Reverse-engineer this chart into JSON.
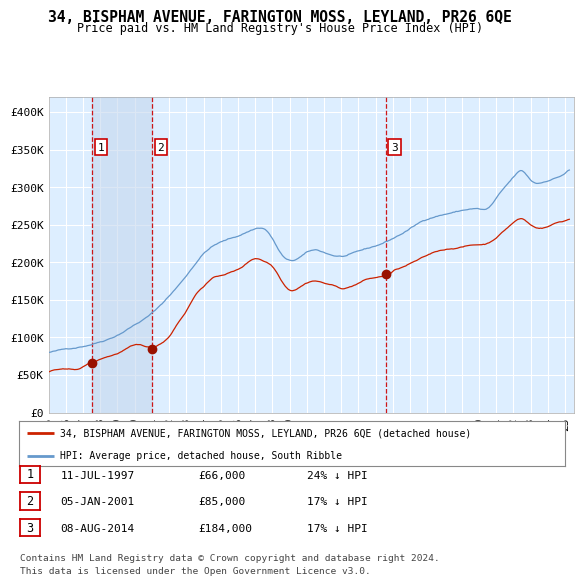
{
  "title": "34, BISPHAM AVENUE, FARINGTON MOSS, LEYLAND, PR26 6QE",
  "subtitle": "Price paid vs. HM Land Registry's House Price Index (HPI)",
  "legend_line1": "34, BISPHAM AVENUE, FARINGTON MOSS, LEYLAND, PR26 6QE (detached house)",
  "legend_line2": "HPI: Average price, detached house, South Ribble",
  "footer1": "Contains HM Land Registry data © Crown copyright and database right 2024.",
  "footer2": "This data is licensed under the Open Government Licence v3.0.",
  "sale_markers": [
    {
      "label": "1",
      "date": "11-JUL-1997",
      "price": 66000,
      "hpi_diff": "24% ↓ HPI",
      "x": 1997.53
    },
    {
      "label": "2",
      "date": "05-JAN-2001",
      "price": 85000,
      "hpi_diff": "17% ↓ HPI",
      "x": 2001.02
    },
    {
      "label": "3",
      "date": "08-AUG-2014",
      "price": 184000,
      "hpi_diff": "17% ↓ HPI",
      "x": 2014.6
    }
  ],
  "ylim": [
    0,
    420000
  ],
  "xlim": [
    1995.0,
    2025.5
  ],
  "hpi_color": "#6699cc",
  "price_color": "#cc2200",
  "marker_color": "#991100",
  "bg_color": "#ddeeff",
  "shade_color": "#c8d8ee",
  "grid_color": "#ffffff",
  "yticks": [
    0,
    50000,
    100000,
    150000,
    200000,
    250000,
    300000,
    350000,
    400000
  ],
  "ytick_labels": [
    "£0",
    "£50K",
    "£100K",
    "£150K",
    "£200K",
    "£250K",
    "£300K",
    "£350K",
    "£400K"
  ],
  "xtick_years": [
    1995,
    1996,
    1997,
    1998,
    1999,
    2000,
    2001,
    2002,
    2003,
    2004,
    2005,
    2006,
    2007,
    2008,
    2009,
    2010,
    2011,
    2012,
    2013,
    2014,
    2015,
    2016,
    2017,
    2018,
    2019,
    2020,
    2021,
    2022,
    2023,
    2024,
    2025
  ]
}
